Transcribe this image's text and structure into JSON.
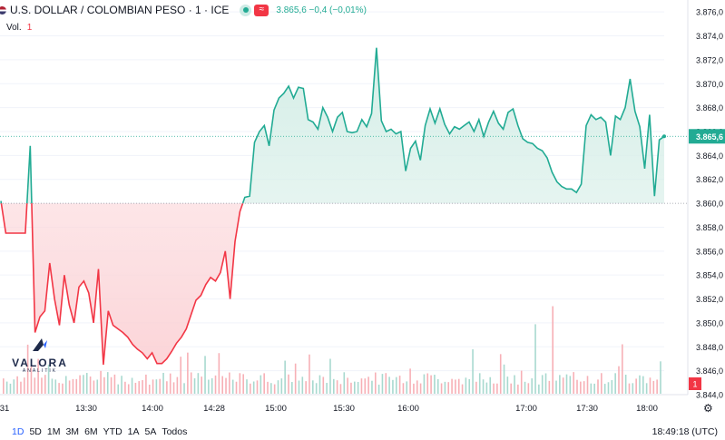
{
  "header": {
    "symbol": "U.S. DOLLAR / COLOMBIAN PESO · 1 · ICE",
    "quote": "3.865,6  −0,4 (−0,01%)",
    "wave_icon": "≈"
  },
  "volume_label": "Vol.",
  "volume_value": "1",
  "logo": {
    "name": "VALORA",
    "sub": "ANALITIK"
  },
  "price_axis": {
    "ticks": [
      "3.876,0",
      "3.874,0",
      "3.872,0",
      "3.870,0",
      "3.868,0",
      "3.866,0",
      "3.864,0",
      "3.862,0",
      "3.860,0",
      "3.858,0",
      "3.856,0",
      "3.854,0",
      "3.852,0",
      "3.850,0",
      "3.848,0",
      "3.846,0",
      "3.844,0"
    ],
    "current_price_label": "3.865,6",
    "volume_badge": "1"
  },
  "time_axis": {
    "labels": [
      "31",
      "13:30",
      "14:00",
      "14:28",
      "15:00",
      "15:30",
      "16:00",
      "17:00",
      "17:30",
      "18:00"
    ]
  },
  "timeframes": [
    "1D",
    "5D",
    "1M",
    "3M",
    "6M",
    "YTD",
    "1A",
    "5A",
    "Todos"
  ],
  "clock": "18:49:18 (UTC)",
  "colors": {
    "up": "#22ab94",
    "down": "#f23645",
    "up_fill": "#e7f4f0",
    "down_fill": "#fde4e6",
    "text": "#131722"
  },
  "chart_data": {
    "type": "area",
    "baseline": 3860.0,
    "current": 3865.6,
    "ylim": [
      3844.0,
      3877.0
    ],
    "x_ticks": [
      "31",
      "13:30",
      "14:00",
      "14:28",
      "15:00",
      "15:30",
      "16:00",
      "17:00",
      "17:30",
      "18:00"
    ],
    "series": [
      {
        "values": [
          3860.2,
          3857.5,
          3857.5,
          3857.5,
          3857.5,
          3857.5,
          3864.8,
          3849.2,
          3850.5,
          3851.0,
          3855.0,
          3852.0,
          3849.8,
          3854.0,
          3851.5,
          3850.0,
          3853.0,
          3853.5,
          3852.5,
          3850.0,
          3854.5,
          3846.5,
          3851.0,
          3849.8,
          3849.5,
          3849.2,
          3848.8,
          3848.2,
          3847.8,
          3847.5,
          3847.0,
          3847.5,
          3846.6,
          3846.6,
          3847.0,
          3847.6,
          3848.3,
          3848.8,
          3849.5,
          3850.7,
          3851.9,
          3852.3,
          3853.2,
          3853.8,
          3853.5,
          3854.2,
          3856.0,
          3852.0,
          3856.8,
          3859.3,
          3860.5,
          3860.6,
          3865.1,
          3866.0,
          3866.5,
          3864.8,
          3867.8,
          3868.8,
          3869.2,
          3869.8,
          3868.8,
          3869.7,
          3869.6,
          3867.0,
          3866.8,
          3866.2,
          3868.0,
          3867.2,
          3866.0,
          3867.2,
          3867.6,
          3866.0,
          3865.9,
          3866.0,
          3867.0,
          3866.4,
          3867.5,
          3873.0,
          3866.9,
          3866.0,
          3866.2,
          3865.8,
          3866.0,
          3862.7,
          3864.6,
          3865.2,
          3863.6,
          3866.5,
          3867.9,
          3866.7,
          3867.9,
          3866.6,
          3865.8,
          3866.4,
          3866.2,
          3866.5,
          3866.8,
          3866.0,
          3867.0,
          3865.6,
          3866.8,
          3867.7,
          3866.7,
          3866.2,
          3867.6,
          3867.9,
          3866.5,
          3865.4,
          3865.1,
          3865.0,
          3864.6,
          3864.4,
          3863.8,
          3862.6,
          3861.8,
          3861.4,
          3861.2,
          3861.2,
          3860.9,
          3861.6,
          3866.5,
          3867.4,
          3867.0,
          3867.2,
          3866.8,
          3864.0,
          3867.3,
          3867.0,
          3868.0,
          3870.4,
          3867.7,
          3866.4,
          3862.9,
          3867.4,
          3860.6,
          3865.3,
          3865.6
        ]
      }
    ],
    "volume": [
      1,
      1,
      0,
      1,
      1,
      1,
      1,
      1,
      1,
      1,
      1,
      1,
      1,
      1,
      1,
      1,
      1,
      0,
      1,
      1,
      1,
      1,
      1,
      1,
      1,
      1,
      1,
      1,
      1,
      1,
      1,
      1,
      1,
      1,
      1,
      1,
      1,
      1,
      1,
      1,
      1,
      1,
      1,
      1,
      1,
      1,
      1,
      1,
      1,
      1,
      1,
      1,
      1,
      1,
      1,
      1,
      1,
      1,
      1,
      1,
      1,
      1,
      1,
      1,
      1,
      1,
      1,
      1,
      1,
      1,
      1,
      1,
      1,
      1,
      1,
      1,
      1,
      1,
      1,
      1,
      1,
      1,
      1,
      1,
      1,
      1,
      1,
      1,
      1,
      1,
      1,
      1,
      1,
      1,
      1,
      1,
      1,
      1,
      1,
      1,
      1,
      1,
      1,
      1,
      1,
      1,
      1,
      1,
      1,
      1,
      1,
      1,
      1,
      1,
      1,
      1,
      1,
      1,
      1,
      1,
      1,
      1,
      1,
      1,
      1,
      1,
      1,
      1,
      1,
      1,
      1,
      1,
      1,
      1,
      1,
      1,
      1,
      1,
      1,
      1,
      1,
      1,
      1,
      1,
      1,
      1,
      1,
      1,
      1,
      1,
      1,
      1,
      1,
      1,
      1,
      1,
      1,
      1,
      1,
      1,
      1,
      1,
      1,
      1,
      1,
      1,
      1,
      1,
      1,
      1,
      1,
      1,
      1,
      1,
      1,
      1,
      1,
      1,
      1,
      1,
      1,
      1,
      1,
      1,
      1,
      1,
      1,
      1,
      1,
      1,
      1,
      1,
      1,
      1,
      1,
      1,
      1,
      1,
      1,
      1,
      1,
      1,
      1,
      1,
      1,
      1,
      1,
      1,
      1,
      1,
      1,
      1,
      1,
      1,
      1,
      1,
      1,
      1,
      1,
      1,
      1,
      1,
      1,
      1,
      1,
      1,
      1,
      1,
      1,
      1,
      1,
      1,
      1,
      1,
      1,
      1,
      1,
      1,
      1,
      1,
      1,
      1,
      1,
      1,
      1,
      1,
      1,
      1,
      1,
      1,
      1,
      1,
      1,
      1,
      1,
      1,
      1,
      1,
      1,
      1,
      1,
      1,
      1,
      1,
      1,
      1,
      1,
      1,
      1,
      1,
      1,
      1,
      1,
      1,
      1,
      1,
      1,
      1,
      1,
      1,
      1,
      1,
      1,
      1,
      1,
      1,
      1,
      1,
      1,
      1,
      1,
      1,
      1,
      1,
      1,
      1,
      1,
      1,
      1,
      1,
      1
    ]
  }
}
